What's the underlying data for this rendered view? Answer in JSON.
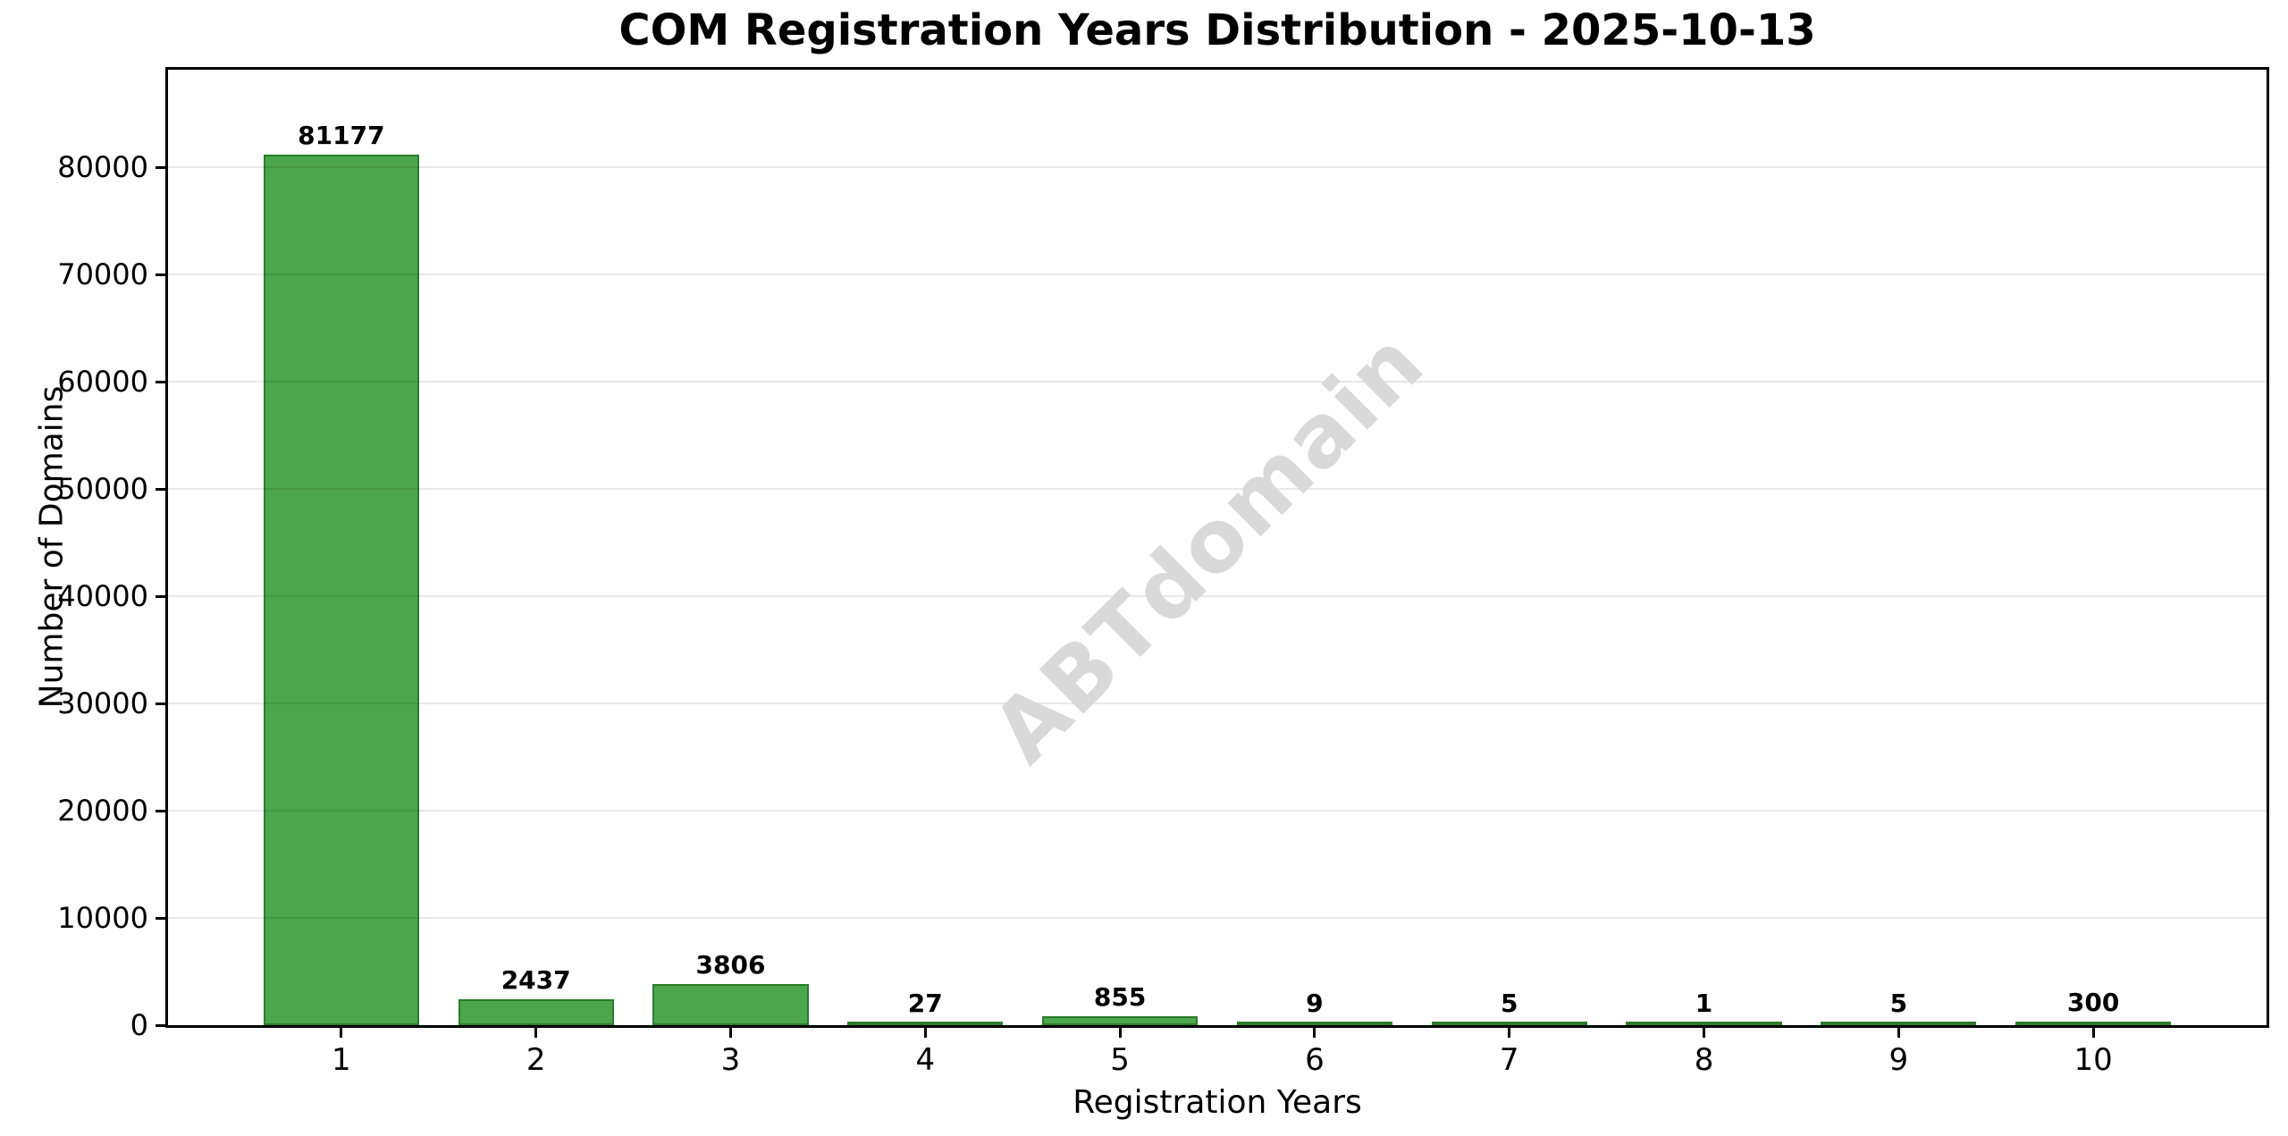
{
  "chart_data": {
    "type": "bar",
    "title": "COM Registration Years Distribution - 2025-10-13",
    "xlabel": "Registration Years",
    "ylabel": "Number of Domains",
    "categories": [
      "1",
      "2",
      "3",
      "4",
      "5",
      "6",
      "7",
      "8",
      "9",
      "10"
    ],
    "values": [
      81177,
      2437,
      3806,
      27,
      855,
      9,
      5,
      1,
      5,
      300
    ],
    "value_labels_shown": true,
    "ylim": [
      0,
      89100
    ],
    "xlim": [
      0.11,
      10.89
    ],
    "yticks": [
      0,
      10000,
      20000,
      30000,
      40000,
      50000,
      60000,
      70000,
      80000
    ],
    "grid": "horizontal",
    "legend": "none",
    "bar_width_units": 0.8,
    "bar_color": "#4CA64C",
    "bar_edge_color": "#2a7e2a",
    "gridline_color": "#e8e8e8",
    "axis_color": "#000000",
    "text_color": "#000000",
    "watermark": "ABTdomain",
    "watermark_color": "#d9d9d9"
  }
}
